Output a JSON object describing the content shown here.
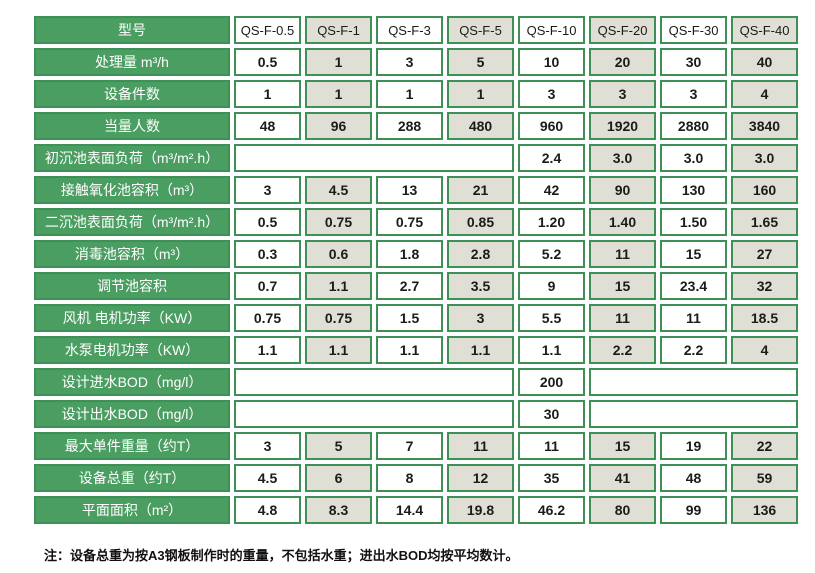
{
  "table": {
    "header": {
      "label": "型号",
      "models": [
        "QS-F-0.5",
        "QS-F-1",
        "QS-F-3",
        "QS-F-5",
        "QS-F-10",
        "QS-F-20",
        "QS-F-30",
        "QS-F-40"
      ]
    },
    "rows": [
      {
        "label": "处理量 m³/h",
        "cells": [
          {
            "span": 1,
            "value": "0.5"
          },
          {
            "span": 1,
            "value": "1"
          },
          {
            "span": 1,
            "value": "3"
          },
          {
            "span": 1,
            "value": "5"
          },
          {
            "span": 1,
            "value": "10"
          },
          {
            "span": 1,
            "value": "20"
          },
          {
            "span": 1,
            "value": "30"
          },
          {
            "span": 1,
            "value": "40"
          }
        ]
      },
      {
        "label": "设备件数",
        "cells": [
          {
            "span": 1,
            "value": "1"
          },
          {
            "span": 1,
            "value": "1"
          },
          {
            "span": 1,
            "value": "1"
          },
          {
            "span": 1,
            "value": "1"
          },
          {
            "span": 1,
            "value": "3"
          },
          {
            "span": 1,
            "value": "3"
          },
          {
            "span": 1,
            "value": "3"
          },
          {
            "span": 1,
            "value": "4"
          }
        ]
      },
      {
        "label": "当量人数",
        "cells": [
          {
            "span": 1,
            "value": "48"
          },
          {
            "span": 1,
            "value": "96"
          },
          {
            "span": 1,
            "value": "288"
          },
          {
            "span": 1,
            "value": "480"
          },
          {
            "span": 1,
            "value": "960"
          },
          {
            "span": 1,
            "value": "1920"
          },
          {
            "span": 1,
            "value": "2880"
          },
          {
            "span": 1,
            "value": "3840"
          }
        ]
      },
      {
        "label": "初沉池表面负荷（m³/m².h）",
        "cells": [
          {
            "span": 4,
            "value": ""
          },
          {
            "span": 1,
            "value": "2.4"
          },
          {
            "span": 1,
            "value": "3.0"
          },
          {
            "span": 1,
            "value": "3.0"
          },
          {
            "span": 1,
            "value": "3.0"
          }
        ]
      },
      {
        "label": "接触氧化池容积（m³）",
        "cells": [
          {
            "span": 1,
            "value": "3"
          },
          {
            "span": 1,
            "value": "4.5"
          },
          {
            "span": 1,
            "value": "13"
          },
          {
            "span": 1,
            "value": "21"
          },
          {
            "span": 1,
            "value": "42"
          },
          {
            "span": 1,
            "value": "90"
          },
          {
            "span": 1,
            "value": "130"
          },
          {
            "span": 1,
            "value": "160"
          }
        ]
      },
      {
        "label": "二沉池表面负荷（m³/m².h）",
        "cells": [
          {
            "span": 1,
            "value": "0.5"
          },
          {
            "span": 1,
            "value": "0.75"
          },
          {
            "span": 1,
            "value": "0.75"
          },
          {
            "span": 1,
            "value": "0.85"
          },
          {
            "span": 1,
            "value": "1.20"
          },
          {
            "span": 1,
            "value": "1.40"
          },
          {
            "span": 1,
            "value": "1.50"
          },
          {
            "span": 1,
            "value": "1.65"
          }
        ]
      },
      {
        "label": "消毒池容积（m³）",
        "cells": [
          {
            "span": 1,
            "value": "0.3"
          },
          {
            "span": 1,
            "value": "0.6"
          },
          {
            "span": 1,
            "value": "1.8"
          },
          {
            "span": 1,
            "value": "2.8"
          },
          {
            "span": 1,
            "value": "5.2"
          },
          {
            "span": 1,
            "value": "11"
          },
          {
            "span": 1,
            "value": "15"
          },
          {
            "span": 1,
            "value": "27"
          }
        ]
      },
      {
        "label": "调节池容积",
        "cells": [
          {
            "span": 1,
            "value": "0.7"
          },
          {
            "span": 1,
            "value": "1.1"
          },
          {
            "span": 1,
            "value": "2.7"
          },
          {
            "span": 1,
            "value": "3.5"
          },
          {
            "span": 1,
            "value": "9"
          },
          {
            "span": 1,
            "value": "15"
          },
          {
            "span": 1,
            "value": "23.4"
          },
          {
            "span": 1,
            "value": "32"
          }
        ]
      },
      {
        "label": "风机 电机功率（KW）",
        "cells": [
          {
            "span": 1,
            "value": "0.75"
          },
          {
            "span": 1,
            "value": "0.75"
          },
          {
            "span": 1,
            "value": "1.5"
          },
          {
            "span": 1,
            "value": "3"
          },
          {
            "span": 1,
            "value": "5.5"
          },
          {
            "span": 1,
            "value": "11"
          },
          {
            "span": 1,
            "value": "11"
          },
          {
            "span": 1,
            "value": "18.5"
          }
        ]
      },
      {
        "label": "水泵电机功率（KW）",
        "cells": [
          {
            "span": 1,
            "value": "1.1"
          },
          {
            "span": 1,
            "value": "1.1"
          },
          {
            "span": 1,
            "value": "1.1"
          },
          {
            "span": 1,
            "value": "1.1"
          },
          {
            "span": 1,
            "value": "1.1"
          },
          {
            "span": 1,
            "value": "2.2"
          },
          {
            "span": 1,
            "value": "2.2"
          },
          {
            "span": 1,
            "value": "4"
          }
        ]
      },
      {
        "label": "设计进水BOD（mg/l）",
        "cells": [
          {
            "span": 4,
            "value": ""
          },
          {
            "span": 1,
            "value": "200"
          },
          {
            "span": 3,
            "value": ""
          }
        ]
      },
      {
        "label": "设计出水BOD（mg/l）",
        "cells": [
          {
            "span": 4,
            "value": ""
          },
          {
            "span": 1,
            "value": "30"
          },
          {
            "span": 3,
            "value": ""
          }
        ]
      },
      {
        "label": "最大单件重量（约T）",
        "cells": [
          {
            "span": 1,
            "value": "3"
          },
          {
            "span": 1,
            "value": "5"
          },
          {
            "span": 1,
            "value": "7"
          },
          {
            "span": 1,
            "value": "11"
          },
          {
            "span": 1,
            "value": "11"
          },
          {
            "span": 1,
            "value": "15"
          },
          {
            "span": 1,
            "value": "19"
          },
          {
            "span": 1,
            "value": "22"
          }
        ]
      },
      {
        "label": "设备总重（约T）",
        "cells": [
          {
            "span": 1,
            "value": "4.5"
          },
          {
            "span": 1,
            "value": "6"
          },
          {
            "span": 1,
            "value": "8"
          },
          {
            "span": 1,
            "value": "12"
          },
          {
            "span": 1,
            "value": "35"
          },
          {
            "span": 1,
            "value": "41"
          },
          {
            "span": 1,
            "value": "48"
          },
          {
            "span": 1,
            "value": "59"
          }
        ]
      },
      {
        "label": "平面面积（m²）",
        "cells": [
          {
            "span": 1,
            "value": "4.8"
          },
          {
            "span": 1,
            "value": "8.3"
          },
          {
            "span": 1,
            "value": "14.4"
          },
          {
            "span": 1,
            "value": "19.8"
          },
          {
            "span": 1,
            "value": "46.2"
          },
          {
            "span": 1,
            "value": "80"
          },
          {
            "span": 1,
            "value": "99"
          },
          {
            "span": 1,
            "value": "136"
          }
        ]
      }
    ]
  },
  "footnote": "注：设备总重为按A3钢板制作时的重量，不包括水重；进出水BOD均按平均数计。",
  "colors": {
    "green_fill": "#4B9E62",
    "green_border": "#3E9156",
    "cell_alt": "#DFDFD5",
    "cell_white": "#FFFFFF",
    "text": "#1B1B1B"
  }
}
